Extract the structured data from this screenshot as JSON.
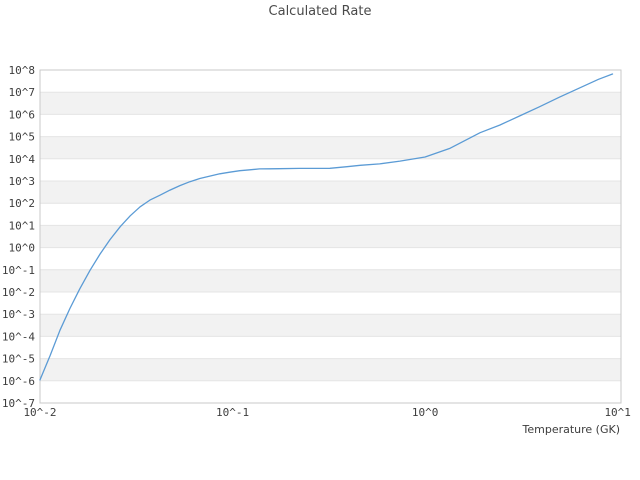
{
  "title": "Calculated Rate",
  "colors": {
    "background": "#ffffff",
    "line": "#5b9bd5",
    "band": "#f2f2f2",
    "grid": "#e4e4e4",
    "border": "#c9c9c9",
    "tick_text": "#3d3d3d",
    "title_text": "#4a4a4a"
  },
  "chart_data": {
    "type": "line",
    "title": "Calculated Rate",
    "xlabel": "Temperature (GK)",
    "ylabel": "",
    "x_scale": "log",
    "y_scale": "log",
    "xlim": [
      0.01,
      10.4
    ],
    "ylim": [
      1e-07,
      100000000.0
    ],
    "grid": "horizontal-bands",
    "legend": "none",
    "x_tick_labels": [
      "10^-2",
      "10^-1",
      "10^0",
      "10^1"
    ],
    "x_tick_values": [
      0.01,
      0.1,
      1,
      10
    ],
    "y_tick_labels": [
      "10^8",
      "10^7",
      "10^6",
      "10^5",
      "10^4",
      "10^3",
      "10^2",
      "10^1",
      "10^0",
      "10^-1",
      "10^-2",
      "10^-3",
      "10^-4",
      "10^-5",
      "10^-6",
      "10^-7"
    ],
    "y_tick_values": [
      100000000.0,
      10000000.0,
      1000000.0,
      100000.0,
      10000.0,
      1000.0,
      100.0,
      10.0,
      1.0,
      0.1,
      0.01,
      0.001,
      0.0001,
      1e-05,
      1e-06,
      1e-07
    ],
    "series": [
      {
        "x": [
          0.01,
          0.0113,
          0.0127,
          0.0143,
          0.0161,
          0.0182,
          0.0205,
          0.0231,
          0.0261,
          0.0294,
          0.0331,
          0.0372,
          0.042,
          0.0473,
          0.0533,
          0.06,
          0.0676,
          0.0762,
          0.0858,
          0.0966,
          0.109,
          0.123,
          0.138,
          0.156,
          0.175,
          0.222,
          0.284,
          0.32,
          0.393,
          0.46,
          0.58,
          0.74,
          1.0,
          1.35,
          1.93,
          2.44,
          3.09,
          3.92,
          4.96,
          6.28,
          7.95,
          9.4
        ],
        "y": [
          1.1e-06,
          1.4e-05,
          0.00019,
          0.0018,
          0.014,
          0.096,
          0.51,
          2.3,
          8.7,
          27,
          69,
          138,
          230,
          390,
          620,
          930,
          1300,
          1660,
          2100,
          2500,
          2900,
          3200,
          3500,
          3550,
          3600,
          3700,
          3700,
          3750,
          4400,
          5100,
          5900,
          7900,
          12000.0,
          30000.0,
          150000.0,
          330000.0,
          850000.0,
          2200000.0,
          5900000.0,
          15000000.0,
          38000000.0,
          66000000.0
        ]
      }
    ]
  }
}
